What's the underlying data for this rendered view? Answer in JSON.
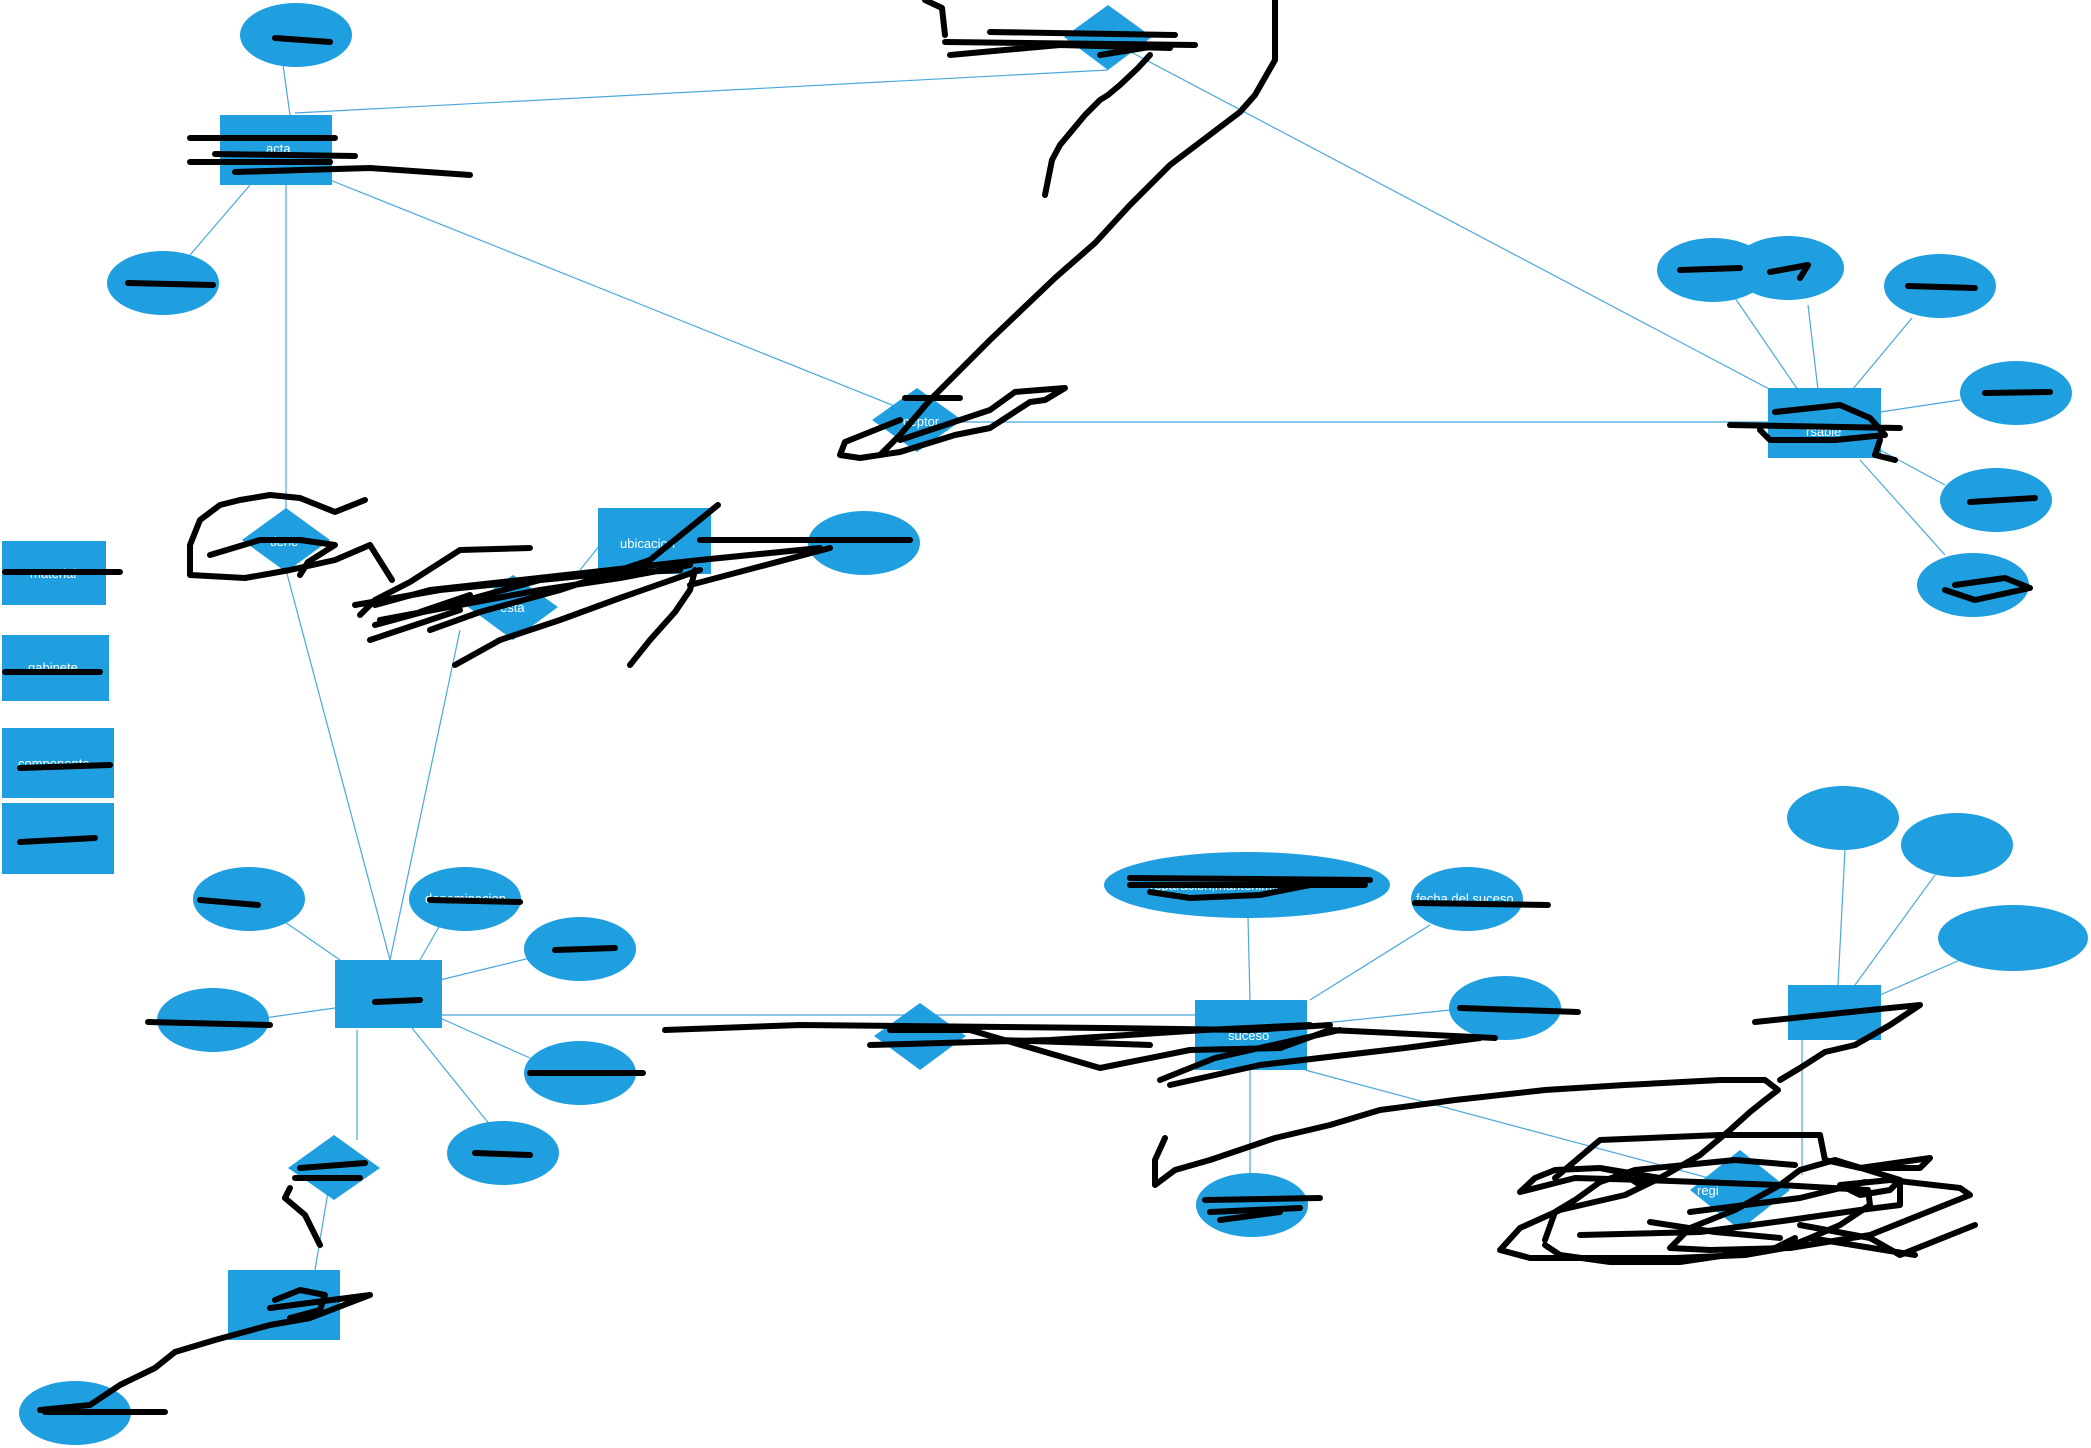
{
  "colors": {
    "node": "#1f9fe0",
    "edge": "#4aa8dc",
    "ink": "#000000",
    "text": "#ffffff"
  },
  "labels": {
    "acta": "acta",
    "receptor": "ceptor",
    "responsable": "rsable",
    "tiene": "tiene",
    "esta": "esta",
    "ubicacion": "ubicacion",
    "denominacion": "denominacion",
    "suceso": "suceso",
    "registro": "regi",
    "reparacion": "reparacion,mantenimiento",
    "fecha_suceso": "fecha del suceso",
    "material": "material",
    "gabinete": "gabinete",
    "componente": "componente"
  }
}
